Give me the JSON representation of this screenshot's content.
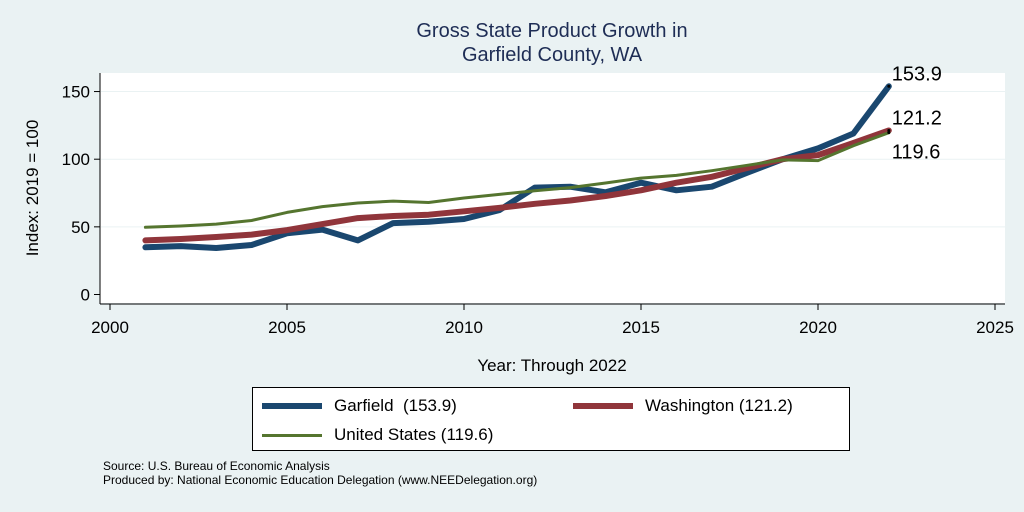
{
  "chart_data": {
    "type": "line",
    "title": [
      "Gross State Product Growth in",
      "Garfield County, WA"
    ],
    "xlabel": "Year: Through 2022",
    "ylabel": "Index: 2019 = 100",
    "xlim": [
      2000,
      2025
    ],
    "ylim": [
      0,
      160
    ],
    "xticks": [
      2000,
      2005,
      2010,
      2015,
      2020,
      2025
    ],
    "yticks": [
      0,
      50,
      100,
      150
    ],
    "grid": "horizontal",
    "legend_position": "bottom",
    "x": [
      2001,
      2002,
      2003,
      2004,
      2005,
      2006,
      2007,
      2008,
      2009,
      2010,
      2011,
      2012,
      2013,
      2014,
      2015,
      2016,
      2017,
      2018,
      2019,
      2020,
      2021,
      2022
    ],
    "series": [
      {
        "name": "United States",
        "legend_label": "United States (119.6)",
        "color": "#55752f",
        "values": [
          49.7,
          50.6,
          52.0,
          54.7,
          60.7,
          65.0,
          67.6,
          69.0,
          68.0,
          71.3,
          74.0,
          76.7,
          79.0,
          82.4,
          86.0,
          88.0,
          91.5,
          95.5,
          99.5,
          99.0,
          110.0,
          119.6
        ],
        "end_label": "119.6"
      },
      {
        "name": "Washington",
        "legend_label": "Washington (121.2)",
        "color": "#90353b",
        "values": [
          40.0,
          41.0,
          42.5,
          44.3,
          47.6,
          52.0,
          56.5,
          58.0,
          59.0,
          61.5,
          64.0,
          67.0,
          69.5,
          72.8,
          77.0,
          82.6,
          87.0,
          93.5,
          100.0,
          103.0,
          112.0,
          121.2
        ],
        "end_label": "121.2"
      },
      {
        "name": "Garfield",
        "legend_label": "Garfield  (153.9)",
        "color": "#1a476f",
        "values": [
          34.9,
          35.8,
          34.4,
          36.6,
          45.2,
          48.0,
          40.0,
          52.8,
          53.8,
          55.8,
          62.4,
          79.0,
          79.7,
          75.5,
          82.6,
          77.0,
          79.7,
          90.0,
          100.0,
          108.0,
          119.0,
          153.9
        ],
        "end_label": "153.9"
      }
    ]
  },
  "footer": {
    "source": "Source: U.S. Bureau of Economic Analysis",
    "produced_by": "Produced by: National Economic Education Delegation (www.NEEDelegation.org)"
  }
}
